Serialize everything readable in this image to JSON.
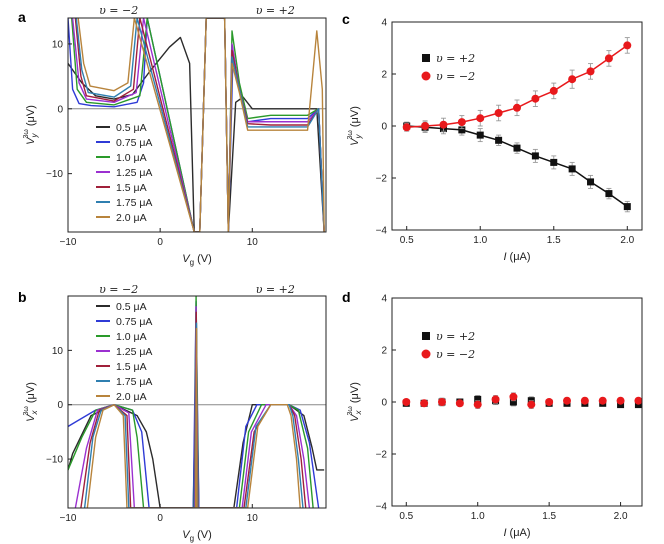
{
  "panels": [
    {
      "id": "a",
      "label": "a",
      "xlabel_var": "V",
      "xlabel_sub": "g",
      "xlabel_unit": " (V)",
      "ylabel_var": "V",
      "ylabel_sub": "y",
      "ylabel_sup": "3ω",
      "ylabel_unit": " (μV)",
      "annot_left": "υ = −2",
      "annot_right": "υ = +2"
    },
    {
      "id": "b",
      "label": "b",
      "xlabel_var": "V",
      "xlabel_sub": "g",
      "xlabel_unit": " (V)",
      "ylabel_var": "V",
      "ylabel_sub": "x",
      "ylabel_sup": "3ω",
      "ylabel_unit": " (μV)",
      "annot_left": "υ = −2",
      "annot_right": "υ = +2"
    },
    {
      "id": "c",
      "label": "c",
      "xlabel_var": "I",
      "xlabel_unit": " (μA)",
      "ylabel_var": "V",
      "ylabel_sub": "y",
      "ylabel_sup": "3ω",
      "ylabel_unit": " (μV)"
    },
    {
      "id": "d",
      "label": "d",
      "xlabel_var": "I",
      "xlabel_unit": " (μA)",
      "ylabel_var": "V",
      "ylabel_sub": "x",
      "ylabel_sup": "3ω",
      "ylabel_unit": " (μV)"
    }
  ],
  "chart_data": [
    {
      "panel": "a",
      "type": "line",
      "xlim": [
        -10,
        18
      ],
      "ylim": [
        -19,
        14
      ],
      "xticks": [
        -10,
        0,
        10
      ],
      "yticks": [
        -10,
        0,
        10
      ],
      "zero_line": true,
      "series": [
        {
          "name": "0.5 μA",
          "color": "#2b2b2b",
          "x": [
            -10,
            -8.5,
            -7,
            -5,
            -3,
            -1,
            1,
            2.2,
            3.2,
            3.7,
            4.3,
            5.0,
            7.0,
            7.4,
            8.2,
            9,
            10,
            12,
            14,
            16,
            17,
            17.8
          ],
          "y": [
            7,
            4,
            2,
            1.5,
            2.2,
            6,
            9.5,
            11,
            7,
            -19,
            -19,
            14,
            14,
            -19,
            1,
            1.8,
            0,
            0,
            0,
            0,
            0,
            -19
          ]
        },
        {
          "name": "0.75 μA",
          "color": "#2f3bd6",
          "x": [
            -10,
            -9.5,
            -8.8,
            -7.5,
            -5,
            -2.5,
            -1.8,
            -1.4,
            3.7,
            4.3,
            5.0,
            7.0,
            7.4,
            7.9,
            9,
            9.5,
            12,
            14,
            16,
            17.2,
            17.8
          ],
          "y": [
            14,
            3,
            0.8,
            0.5,
            0.3,
            1,
            4,
            14,
            -19,
            -19,
            14,
            14,
            -19,
            8,
            0.5,
            -2,
            -1.5,
            -1.5,
            -1.5,
            0,
            -19
          ]
        },
        {
          "name": "1.0 μA",
          "color": "#2a9a2a",
          "x": [
            -9.6,
            -9,
            -8,
            -5,
            -2.2,
            -1.4,
            3.7,
            4.3,
            5.0,
            7.0,
            7.4,
            7.8,
            8.6,
            9.5,
            12,
            14,
            16,
            17.2,
            17.8
          ],
          "y": [
            14,
            3,
            1,
            0.6,
            2,
            14,
            -19,
            -19,
            14,
            14,
            -19,
            12,
            4,
            -1.5,
            -1,
            -1,
            -1,
            0,
            -19
          ]
        },
        {
          "name": "1.25 μA",
          "color": "#9b30d0",
          "x": [
            -9.5,
            -8.8,
            -8,
            -5,
            -2.6,
            -1.8,
            3.7,
            4.3,
            5.0,
            7.0,
            7.4,
            7.8,
            8.6,
            9.5,
            12,
            14,
            16,
            17.2,
            17.8
          ],
          "y": [
            14,
            4,
            1.5,
            1,
            2.5,
            14,
            -19,
            -19,
            14,
            14,
            -19,
            10,
            3,
            -2,
            -2,
            -2,
            -2,
            0,
            -19
          ]
        },
        {
          "name": "1.5 μA",
          "color": "#a0203a",
          "x": [
            -9.2,
            -8.6,
            -8,
            -5,
            -2.9,
            -2.2,
            3.7,
            4.3,
            5.0,
            7.0,
            7.4,
            7.8,
            8.6,
            9.5,
            12,
            14,
            16,
            17.2,
            17.8
          ],
          "y": [
            14,
            5,
            2,
            1.2,
            3,
            14,
            -19,
            -19,
            14,
            14,
            -19,
            9,
            3,
            -2.3,
            -2.5,
            -2.5,
            -2.5,
            0,
            -19
          ]
        },
        {
          "name": "1.75 μA",
          "color": "#2f7fb0",
          "x": [
            -9.1,
            -8.5,
            -7.8,
            -5,
            -3.2,
            -2.5,
            3.7,
            4.3,
            5.0,
            7.0,
            7.4,
            7.8,
            8.6,
            9.5,
            12,
            14,
            16,
            17.2,
            17.8
          ],
          "y": [
            14,
            6,
            2.5,
            1.8,
            3.5,
            14,
            -19,
            -19,
            14,
            14,
            -19,
            8,
            3,
            -2.8,
            -2.8,
            -2.8,
            -2.8,
            0,
            -19
          ]
        },
        {
          "name": "2.0 μA",
          "color": "#b8843c",
          "x": [
            -8.9,
            -8.3,
            -7.6,
            -5,
            -3.5,
            -2.8,
            3.7,
            4.3,
            5.0,
            7.0,
            7.4,
            7.8,
            8.6,
            9.5,
            12,
            14,
            16,
            17.0,
            17.6,
            17.8
          ],
          "y": [
            14,
            7,
            3.5,
            2.8,
            4,
            14,
            -19,
            -19,
            14,
            14,
            -19,
            7,
            2.5,
            -3.3,
            -3.3,
            -3.3,
            -3.3,
            12,
            3,
            -19
          ]
        }
      ]
    },
    {
      "panel": "b",
      "type": "line",
      "xlim": [
        -10,
        18
      ],
      "ylim": [
        -19,
        20
      ],
      "xticks": [
        -10,
        0,
        10
      ],
      "yticks": [
        -10,
        0,
        10
      ],
      "zero_line": true,
      "series": [
        {
          "name": "0.5 μA",
          "color": "#2b2b2b",
          "x": [
            -10,
            -9.5,
            -7.5,
            -5,
            -2.5,
            -1.5,
            -0.8,
            0,
            2.5,
            3.6,
            3.9,
            4.2,
            4.6,
            5.5,
            8,
            9,
            10,
            14,
            15.6,
            16.5,
            17,
            17.8
          ],
          "y": [
            -12,
            -9,
            -2,
            0,
            -2,
            -5,
            -10,
            -19,
            -19,
            -19,
            10,
            -19,
            -19,
            -19,
            -19,
            -7,
            0,
            0,
            -2,
            -8,
            -12,
            -12
          ]
        },
        {
          "name": "0.75 μA",
          "color": "#2f3bd6",
          "x": [
            -10,
            -9,
            -7,
            -5,
            -3,
            -2,
            -1.2,
            2.8,
            3.6,
            3.9,
            4.2,
            5.2,
            8.3,
            9.3,
            10.5,
            14,
            15.2,
            16.2,
            17.2
          ],
          "y": [
            -4,
            -3,
            -1,
            0,
            -1,
            -5,
            -19,
            -19,
            -19,
            19,
            -19,
            -19,
            -19,
            -4,
            0,
            0,
            -1,
            -7,
            -19
          ]
        },
        {
          "name": "1.0 μA",
          "color": "#2a9a2a",
          "x": [
            -10,
            -8.5,
            -7,
            -5,
            -3,
            -2.5,
            -1.8,
            3.1,
            3.7,
            3.9,
            4.15,
            5.0,
            8.6,
            9.6,
            11,
            14,
            15,
            16,
            16.6
          ],
          "y": [
            -12,
            -6,
            -1,
            0,
            -1,
            -6,
            -19,
            -19,
            -19,
            20,
            -19,
            -19,
            -19,
            -5,
            0,
            0,
            -1,
            -8,
            -19
          ]
        },
        {
          "name": "1.25 μA",
          "color": "#9b30d0",
          "x": [
            -9.2,
            -8,
            -6.8,
            -5,
            -3.4,
            -2.8,
            3.3,
            3.75,
            3.9,
            4.1,
            4.8,
            8.9,
            9.9,
            11.5,
            14,
            14.8,
            15.6,
            16.2
          ],
          "y": [
            -19,
            -8,
            -1,
            0,
            -1.5,
            -19,
            -19,
            -19,
            18,
            -19,
            -19,
            -19,
            -5,
            0,
            0,
            -2,
            -10,
            -19
          ]
        },
        {
          "name": "1.5 μA",
          "color": "#a0203a",
          "x": [
            -8.6,
            -7.6,
            -6.6,
            -5,
            -3.6,
            -3.2,
            3.4,
            3.8,
            3.92,
            4.05,
            4.6,
            9.1,
            10.2,
            12,
            14,
            14.6,
            15.3,
            15.8
          ],
          "y": [
            -19,
            -7,
            -1,
            0,
            -2,
            -19,
            -19,
            -19,
            17,
            -19,
            -19,
            -19,
            -5,
            0,
            0,
            -2,
            -10,
            -19
          ]
        },
        {
          "name": "1.75 μA",
          "color": "#2f7fb0",
          "x": [
            -8.2,
            -7.3,
            -6.4,
            -5,
            -3.8,
            -3.4,
            3.5,
            3.82,
            3.94,
            4.02,
            4.5,
            9.3,
            10.4,
            12,
            14,
            14.4,
            15.0,
            15.5
          ],
          "y": [
            -19,
            -6,
            -1,
            0,
            -2,
            -19,
            -19,
            -19,
            15,
            -19,
            -19,
            -19,
            -4,
            0,
            0,
            -2,
            -10,
            -19
          ]
        },
        {
          "name": "2.0 μA",
          "color": "#b8843c",
          "x": [
            -7.9,
            -7.0,
            -6.2,
            -5,
            -4,
            -3.6,
            3.6,
            3.85,
            3.95,
            4.0,
            4.4,
            9.5,
            10.6,
            12,
            13.8,
            14.2,
            14.8,
            15.2
          ],
          "y": [
            -19,
            -6,
            -1,
            0,
            -2,
            -19,
            -19,
            -19,
            14,
            -19,
            -19,
            -19,
            -4,
            0,
            0,
            -2,
            -10,
            -19
          ]
        }
      ]
    },
    {
      "panel": "c",
      "type": "scatter",
      "xlim": [
        0.4,
        2.1
      ],
      "ylim": [
        -4,
        4
      ],
      "xticks": [
        0.5,
        1.0,
        1.5,
        2.0
      ],
      "yticks": [
        -4,
        -2,
        0,
        2,
        4
      ],
      "x_tick_labels": [
        "0.5",
        "1.0",
        "1.5",
        "2.0"
      ],
      "zero_line": false,
      "legend_position": "top-left",
      "fit_lines": true,
      "series": [
        {
          "name": "υ = +2",
          "color": "#111111",
          "marker": "square",
          "x": [
            0.5,
            0.625,
            0.75,
            0.875,
            1.0,
            1.125,
            1.25,
            1.375,
            1.5,
            1.625,
            1.75,
            1.875,
            2.0
          ],
          "y": [
            0.0,
            -0.05,
            -0.1,
            -0.15,
            -0.35,
            -0.55,
            -0.85,
            -1.15,
            -1.4,
            -1.65,
            -2.15,
            -2.6,
            -3.1
          ],
          "err": [
            0.15,
            0.2,
            0.2,
            0.2,
            0.25,
            0.2,
            0.2,
            0.25,
            0.25,
            0.25,
            0.25,
            0.2,
            0.2
          ]
        },
        {
          "name": "υ = −2",
          "color": "#e8191c",
          "marker": "circle",
          "x": [
            0.5,
            0.625,
            0.75,
            0.875,
            1.0,
            1.125,
            1.25,
            1.375,
            1.5,
            1.625,
            1.75,
            1.875,
            2.0
          ],
          "y": [
            -0.05,
            0.0,
            0.05,
            0.15,
            0.3,
            0.5,
            0.7,
            1.05,
            1.35,
            1.8,
            2.1,
            2.6,
            3.1
          ],
          "err": [
            0.15,
            0.2,
            0.25,
            0.25,
            0.3,
            0.3,
            0.3,
            0.3,
            0.3,
            0.35,
            0.3,
            0.3,
            0.3
          ]
        }
      ]
    },
    {
      "panel": "d",
      "type": "scatter",
      "xlim": [
        0.4,
        2.15
      ],
      "ylim": [
        -4,
        4
      ],
      "xticks": [
        0.5,
        1.0,
        1.5,
        2.0
      ],
      "yticks": [
        -4,
        -2,
        0,
        2,
        4
      ],
      "x_tick_labels": [
        "0.5",
        "1.0",
        "1.5",
        "2.0"
      ],
      "zero_line": false,
      "legend_position": "top-left",
      "fit_lines": false,
      "series": [
        {
          "name": "υ = +2",
          "color": "#111111",
          "marker": "square",
          "x": [
            0.5,
            0.625,
            0.75,
            0.875,
            1.0,
            1.125,
            1.25,
            1.375,
            1.5,
            1.625,
            1.75,
            1.875,
            2.0,
            2.125
          ],
          "y": [
            -0.05,
            -0.05,
            0.0,
            0.0,
            0.1,
            0.05,
            0.0,
            0.05,
            -0.05,
            -0.05,
            -0.05,
            -0.05,
            -0.1,
            -0.1
          ],
          "err": [
            0.1,
            0.1,
            0.1,
            0.1,
            0.15,
            0.15,
            0.15,
            0.15,
            0.1,
            0.1,
            0.1,
            0.1,
            0.1,
            0.1
          ]
        },
        {
          "name": "υ = −2",
          "color": "#e8191c",
          "marker": "circle",
          "x": [
            0.5,
            0.625,
            0.75,
            0.875,
            1.0,
            1.125,
            1.25,
            1.375,
            1.5,
            1.625,
            1.75,
            1.875,
            2.0,
            2.125
          ],
          "y": [
            0.0,
            -0.05,
            0.0,
            -0.05,
            -0.1,
            0.1,
            0.2,
            -0.1,
            0.0,
            0.05,
            0.05,
            0.05,
            0.05,
            0.05
          ],
          "err": [
            0.1,
            0.1,
            0.15,
            0.1,
            0.15,
            0.15,
            0.15,
            0.15,
            0.1,
            0.1,
            0.1,
            0.1,
            0.1,
            0.1
          ]
        }
      ]
    }
  ]
}
